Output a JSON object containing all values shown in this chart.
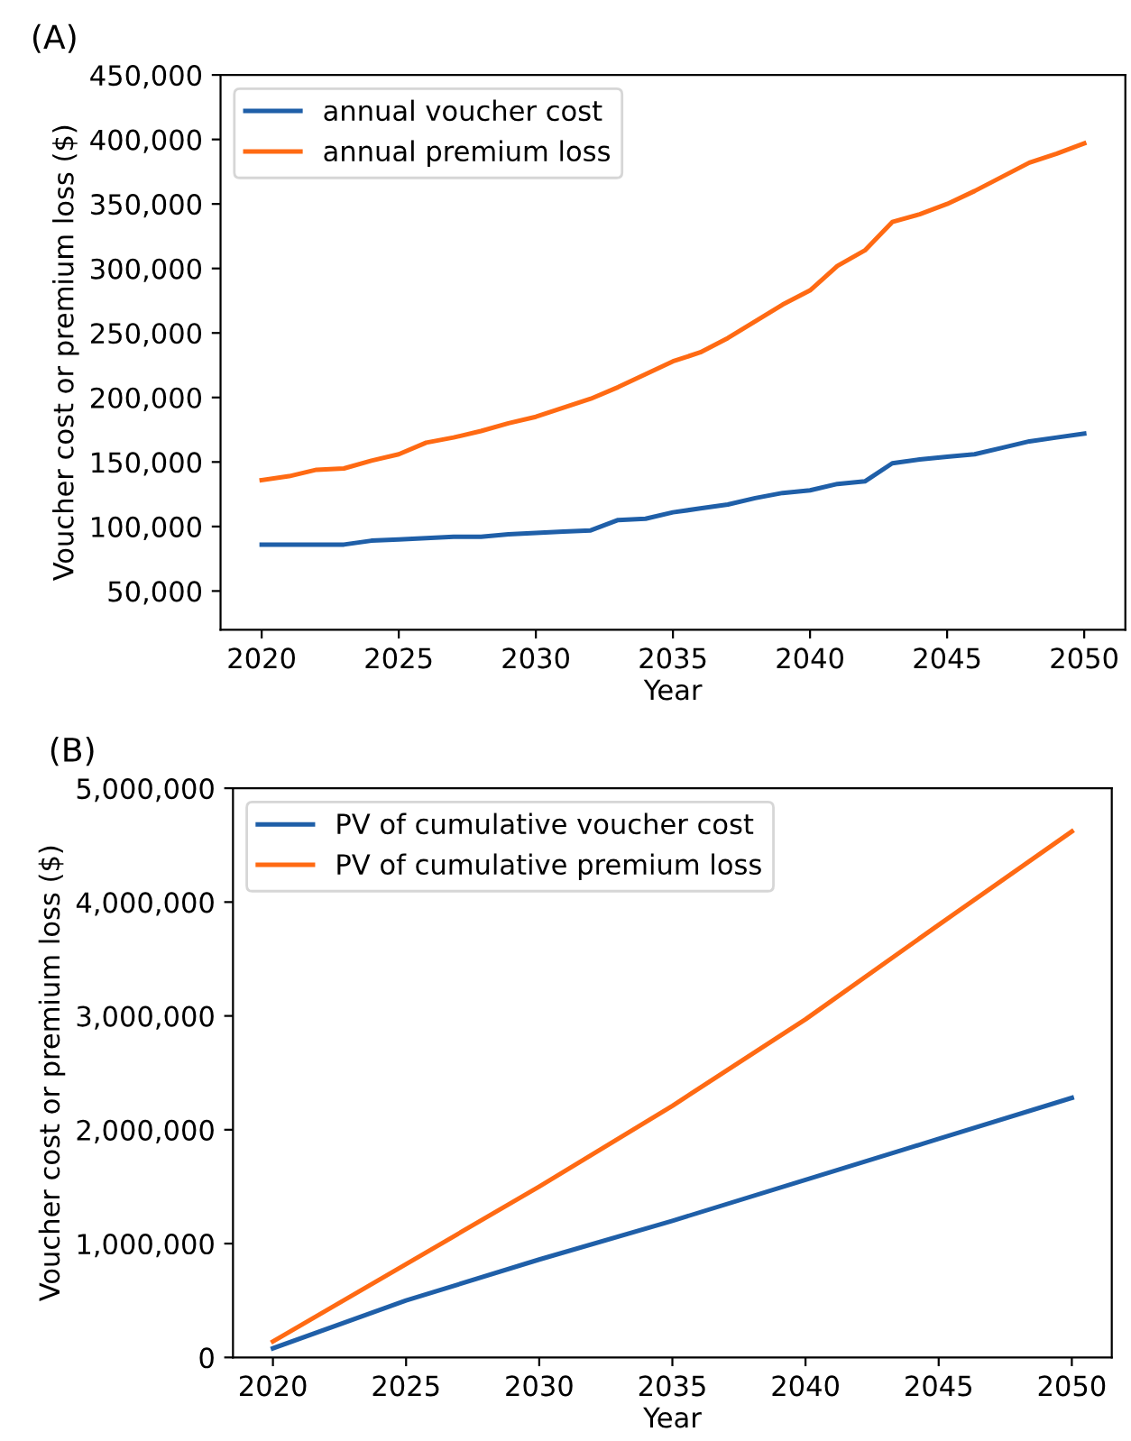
{
  "chart_data": [
    {
      "type": "line",
      "title": "(A)",
      "xlabel": "Year",
      "ylabel": "Voucher cost or premium loss ($)",
      "x": [
        2020,
        2021,
        2022,
        2023,
        2024,
        2025,
        2026,
        2027,
        2028,
        2029,
        2030,
        2031,
        2032,
        2033,
        2034,
        2035,
        2036,
        2037,
        2038,
        2039,
        2040,
        2041,
        2042,
        2043,
        2044,
        2045,
        2046,
        2047,
        2048,
        2049,
        2050
      ],
      "series": [
        {
          "name": "annual voucher cost",
          "color": "#1f5fa8",
          "values": [
            86000,
            86000,
            86000,
            86000,
            89000,
            90000,
            91000,
            92000,
            92000,
            94000,
            95000,
            96000,
            97000,
            105000,
            106000,
            111000,
            114000,
            117000,
            122000,
            126000,
            128000,
            133000,
            135000,
            149000,
            152000,
            154000,
            156000,
            161000,
            166000,
            169000,
            172000
          ]
        },
        {
          "name": "annual premium loss",
          "color": "#ff6a13",
          "values": [
            136000,
            139000,
            144000,
            145000,
            151000,
            156000,
            165000,
            169000,
            174000,
            180000,
            185000,
            192000,
            199000,
            208000,
            218000,
            228000,
            235000,
            246000,
            259000,
            272000,
            283000,
            302000,
            314000,
            336000,
            342000,
            350000,
            360000,
            371000,
            382000,
            389000,
            397000
          ]
        }
      ],
      "xlim": [
        2018.5,
        2051.5
      ],
      "xticks": [
        2020,
        2025,
        2030,
        2035,
        2040,
        2045,
        2050
      ],
      "ylim": [
        20000,
        450000
      ],
      "yticks": [
        {
          "value": 50000,
          "label": "50,000"
        },
        {
          "value": 100000,
          "label": "100,000"
        },
        {
          "value": 150000,
          "label": "150,000"
        },
        {
          "value": 200000,
          "label": "200,000"
        },
        {
          "value": 250000,
          "label": "250,000"
        },
        {
          "value": 300000,
          "label": "300,000"
        },
        {
          "value": 350000,
          "label": "350,000"
        },
        {
          "value": 400000,
          "label": "400,000"
        },
        {
          "value": 450000,
          "label": "450,000"
        }
      ],
      "legend": "top left",
      "grid": false,
      "line_style": "solid",
      "marker": "none"
    },
    {
      "type": "line",
      "title": "(B)",
      "xlabel": "Year",
      "ylabel": "Voucher cost or premium loss ($)",
      "x": [
        2020,
        2025,
        2030,
        2035,
        2040,
        2045,
        2050
      ],
      "series": [
        {
          "name": "PV of cumulative voucher cost",
          "color": "#1f5fa8",
          "values": [
            80000,
            500000,
            860000,
            1200000,
            1560000,
            1920000,
            2280000
          ]
        },
        {
          "name": "PV of cumulative premium loss",
          "color": "#ff6a13",
          "values": [
            140000,
            820000,
            1500000,
            2210000,
            2970000,
            3800000,
            4620000
          ]
        }
      ],
      "xlim": [
        2018.5,
        2051.5
      ],
      "xticks": [
        2020,
        2025,
        2030,
        2035,
        2040,
        2045,
        2050
      ],
      "ylim": [
        0,
        5000000
      ],
      "yticks": [
        0,
        {
          "value": 1000000,
          "label": "1,000,000"
        },
        {
          "value": 2000000,
          "label": "2,000,000"
        },
        {
          "value": 3000000,
          "label": "3,000,000"
        },
        {
          "value": 4000000,
          "label": "4,000,000"
        },
        {
          "value": 5000000,
          "label": "5,000,000"
        }
      ],
      "legend": "top left",
      "grid": false,
      "line_style": "solid",
      "marker": "none"
    }
  ]
}
